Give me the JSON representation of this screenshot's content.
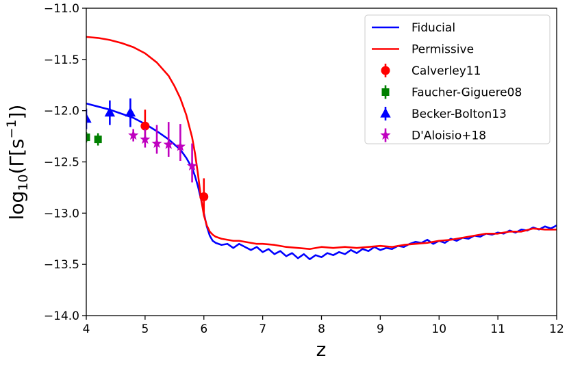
{
  "chart_data": {
    "type": "line",
    "title": "",
    "xlabel": "z",
    "ylabel": "log10(Γ[s^-1])",
    "xlim": [
      4,
      12
    ],
    "ylim": [
      -14.0,
      -11.0
    ],
    "xticks": [
      4,
      5,
      6,
      7,
      8,
      9,
      10,
      11,
      12
    ],
    "xtick_labels": [
      "4",
      "5",
      "6",
      "7",
      "8",
      "9",
      "10",
      "11",
      "12"
    ],
    "yticks": [
      -11.0,
      -11.5,
      -12.0,
      -12.5,
      -13.0,
      -13.5,
      -14.0
    ],
    "ytick_labels": [
      "−11.0",
      "−11.5",
      "−12.0",
      "−12.5",
      "−13.0",
      "−13.5",
      "−14.0"
    ],
    "grid": false,
    "legend_position": "top-right",
    "series": [
      {
        "name": "Fiducial",
        "kind": "line",
        "color": "#0000ff",
        "x": [
          4.0,
          4.2,
          4.4,
          4.6,
          4.8,
          5.0,
          5.2,
          5.4,
          5.6,
          5.7,
          5.8,
          5.85,
          5.9,
          5.95,
          6.0,
          6.05,
          6.1,
          6.15,
          6.2,
          6.3,
          6.4,
          6.5,
          6.6,
          6.7,
          6.8,
          6.9,
          7.0,
          7.1,
          7.2,
          7.3,
          7.4,
          7.5,
          7.6,
          7.7,
          7.8,
          7.9,
          8.0,
          8.1,
          8.2,
          8.3,
          8.4,
          8.5,
          8.6,
          8.7,
          8.8,
          8.9,
          9.0,
          9.1,
          9.2,
          9.3,
          9.4,
          9.5,
          9.6,
          9.7,
          9.8,
          9.9,
          10.0,
          10.1,
          10.2,
          10.3,
          10.4,
          10.5,
          10.6,
          10.7,
          10.8,
          10.9,
          11.0,
          11.1,
          11.2,
          11.3,
          11.4,
          11.5,
          11.6,
          11.7,
          11.8,
          11.9,
          12.0
        ],
        "y": [
          -11.93,
          -11.96,
          -11.99,
          -12.03,
          -12.07,
          -12.13,
          -12.2,
          -12.28,
          -12.38,
          -12.46,
          -12.56,
          -12.64,
          -12.74,
          -12.86,
          -13.0,
          -13.13,
          -13.22,
          -13.27,
          -13.29,
          -13.31,
          -13.3,
          -13.34,
          -13.3,
          -13.33,
          -13.36,
          -13.33,
          -13.38,
          -13.35,
          -13.4,
          -13.37,
          -13.42,
          -13.39,
          -13.44,
          -13.4,
          -13.45,
          -13.41,
          -13.43,
          -13.39,
          -13.41,
          -13.38,
          -13.4,
          -13.36,
          -13.39,
          -13.35,
          -13.37,
          -13.33,
          -13.36,
          -13.34,
          -13.35,
          -13.32,
          -13.33,
          -13.3,
          -13.28,
          -13.29,
          -13.26,
          -13.3,
          -13.27,
          -13.29,
          -13.25,
          -13.27,
          -13.24,
          -13.25,
          -13.22,
          -13.23,
          -13.2,
          -13.21,
          -13.19,
          -13.2,
          -13.17,
          -13.19,
          -13.16,
          -13.17,
          -13.14,
          -13.16,
          -13.13,
          -13.15,
          -13.12
        ]
      },
      {
        "name": "Permissive",
        "kind": "line",
        "color": "#ff0000",
        "x": [
          4.0,
          4.2,
          4.4,
          4.6,
          4.8,
          5.0,
          5.2,
          5.4,
          5.5,
          5.6,
          5.7,
          5.8,
          5.85,
          5.9,
          5.95,
          6.0,
          6.05,
          6.1,
          6.15,
          6.2,
          6.3,
          6.4,
          6.5,
          6.6,
          6.7,
          6.8,
          6.9,
          7.0,
          7.2,
          7.4,
          7.6,
          7.8,
          8.0,
          8.2,
          8.4,
          8.6,
          8.8,
          9.0,
          9.2,
          9.4,
          9.6,
          9.8,
          10.0,
          10.2,
          10.4,
          10.6,
          10.8,
          11.0,
          11.2,
          11.4,
          11.6,
          11.8,
          12.0
        ],
        "y": [
          -11.28,
          -11.29,
          -11.31,
          -11.34,
          -11.38,
          -11.44,
          -11.53,
          -11.66,
          -11.76,
          -11.88,
          -12.04,
          -12.26,
          -12.42,
          -12.62,
          -12.85,
          -13.02,
          -13.12,
          -13.18,
          -13.21,
          -13.23,
          -13.25,
          -13.26,
          -13.27,
          -13.27,
          -13.28,
          -13.29,
          -13.3,
          -13.3,
          -13.31,
          -13.33,
          -13.34,
          -13.35,
          -13.33,
          -13.34,
          -13.33,
          -13.34,
          -13.33,
          -13.32,
          -13.33,
          -13.31,
          -13.3,
          -13.29,
          -13.27,
          -13.26,
          -13.24,
          -13.22,
          -13.2,
          -13.2,
          -13.18,
          -13.18,
          -13.15,
          -13.16,
          -13.16
        ]
      },
      {
        "name": "Calverley11",
        "kind": "points",
        "marker": "circle",
        "color": "#ff0000",
        "x": [
          5.0,
          6.0
        ],
        "y": [
          -12.15,
          -12.84
        ],
        "yerr_low": [
          0.16,
          0.18
        ],
        "yerr_high": [
          0.16,
          0.18
        ]
      },
      {
        "name": "Faucher-Giguere08",
        "kind": "points",
        "marker": "square",
        "color": "#008000",
        "x": [
          4.0,
          4.2
        ],
        "y": [
          -12.26,
          -12.28
        ],
        "yerr_low": [
          0.05,
          0.06
        ],
        "yerr_high": [
          0.05,
          0.06
        ]
      },
      {
        "name": "Becker-Bolton13",
        "kind": "points",
        "marker": "triangle",
        "color": "#0000ff",
        "x": [
          4.0,
          4.4,
          4.75
        ],
        "y": [
          -12.08,
          -12.02,
          -12.02
        ],
        "yerr_low": [
          0.1,
          0.12,
          0.14
        ],
        "yerr_high": [
          0.1,
          0.12,
          0.14
        ]
      },
      {
        "name": "D'Aloisio+18",
        "kind": "points",
        "marker": "star",
        "color": "#bf00bf",
        "x": [
          4.8,
          5.0,
          5.2,
          5.4,
          5.6,
          5.8
        ],
        "y": [
          -12.24,
          -12.28,
          -12.32,
          -12.33,
          -12.35,
          -12.54
        ],
        "yerr_low": [
          0.06,
          0.08,
          0.1,
          0.12,
          0.14,
          0.16
        ],
        "yerr_high": [
          0.06,
          0.1,
          0.18,
          0.22,
          0.22,
          0.22
        ]
      }
    ]
  }
}
